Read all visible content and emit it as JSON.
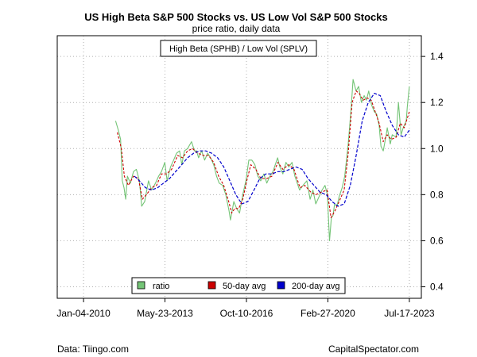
{
  "chart_data": {
    "type": "line",
    "title": "US High Beta S&P 500 Stocks vs. US Low Vol S&P 500 Stocks",
    "subtitle": "price ratio, daily data",
    "annotation": "High Beta (SPHB) / Low Vol (SPLV)",
    "footer_left": "Data: Tiingo.com",
    "footer_right": "CapitalSpectator.com",
    "x_ticks": [
      {
        "date": "2010-01-04",
        "label": "Jan-04-2010"
      },
      {
        "date": "2013-05-23",
        "label": "May-23-2013"
      },
      {
        "date": "2016-10-10",
        "label": "Oct-10-2016"
      },
      {
        "date": "2020-02-27",
        "label": "Feb-27-2020"
      },
      {
        "date": "2023-07-17",
        "label": "Jul-17-2023"
      }
    ],
    "xlim": [
      "2008-12-01",
      "2024-01-15"
    ],
    "y_ticks": [
      "0.4",
      "0.6",
      "0.8",
      "1.0",
      "1.2",
      "1.4"
    ],
    "ylim": [
      0.35,
      1.49
    ],
    "grid": true,
    "axis_side": "right",
    "legend_position": "bottom-center",
    "series": [
      {
        "name": "ratio",
        "color": "#74c476",
        "x": [
          "2011-05-05",
          "2011-06-15",
          "2011-07-20",
          "2011-08-15",
          "2011-09-10",
          "2011-10-05",
          "2011-11-01",
          "2011-12-15",
          "2012-02-01",
          "2012-03-15",
          "2012-05-01",
          "2012-06-04",
          "2012-07-20",
          "2012-09-15",
          "2012-11-01",
          "2012-12-31",
          "2013-02-15",
          "2013-03-31",
          "2013-05-21",
          "2013-06-24",
          "2013-08-15",
          "2013-10-01",
          "2013-11-15",
          "2013-12-31",
          "2014-02-03",
          "2014-03-15",
          "2014-05-01",
          "2014-06-30",
          "2014-08-15",
          "2014-09-15",
          "2014-10-15",
          "2014-12-01",
          "2015-01-15",
          "2015-03-01",
          "2015-04-15",
          "2015-06-01",
          "2015-07-15",
          "2015-08-24",
          "2015-10-15",
          "2015-12-01",
          "2016-01-20",
          "2016-02-11",
          "2016-04-01",
          "2016-05-15",
          "2016-06-27",
          "2016-08-15",
          "2016-10-01",
          "2016-11-15",
          "2016-12-31",
          "2017-02-15",
          "2017-04-01",
          "2017-05-15",
          "2017-07-01",
          "2017-08-15",
          "2017-10-01",
          "2017-11-15",
          "2018-01-26",
          "2018-03-01",
          "2018-04-15",
          "2018-06-01",
          "2018-07-15",
          "2018-09-01",
          "2018-10-15",
          "2018-12-24",
          "2019-02-15",
          "2019-04-15",
          "2019-06-03",
          "2019-07-15",
          "2019-08-27",
          "2019-10-15",
          "2019-12-01",
          "2020-01-15",
          "2020-02-20",
          "2020-03-23",
          "2020-04-20",
          "2020-05-15",
          "2020-06-08",
          "2020-07-15",
          "2020-08-15",
          "2020-10-01",
          "2020-11-09",
          "2020-12-31",
          "2021-02-15",
          "2021-03-15",
          "2021-04-30",
          "2021-06-07",
          "2021-07-20",
          "2021-08-31",
          "2021-10-04",
          "2021-11-08",
          "2021-12-20",
          "2022-01-31",
          "2022-03-08",
          "2022-04-15",
          "2022-05-12",
          "2022-06-16",
          "2022-07-31",
          "2022-08-16",
          "2022-09-30",
          "2022-10-31",
          "2022-12-28",
          "2023-02-02",
          "2023-03-13",
          "2023-04-15",
          "2023-05-31",
          "2023-06-15",
          "2023-07-17"
        ],
        "values": [
          1.12,
          1.08,
          1.04,
          0.86,
          0.83,
          0.78,
          0.88,
          0.85,
          0.9,
          0.91,
          0.86,
          0.75,
          0.77,
          0.86,
          0.82,
          0.85,
          0.88,
          0.9,
          0.94,
          0.86,
          0.92,
          0.95,
          0.98,
          0.99,
          0.93,
          0.99,
          1.0,
          1.03,
          0.99,
          0.99,
          0.96,
          0.99,
          0.95,
          0.98,
          0.96,
          0.93,
          0.88,
          0.85,
          0.84,
          0.8,
          0.73,
          0.69,
          0.77,
          0.74,
          0.72,
          0.8,
          0.86,
          0.95,
          0.95,
          0.93,
          0.88,
          0.86,
          0.89,
          0.85,
          0.88,
          0.9,
          0.96,
          0.92,
          0.89,
          0.94,
          0.92,
          0.94,
          0.88,
          0.82,
          0.84,
          0.86,
          0.78,
          0.82,
          0.76,
          0.79,
          0.82,
          0.84,
          0.8,
          0.6,
          0.7,
          0.71,
          0.76,
          0.75,
          0.79,
          0.83,
          0.88,
          1.02,
          1.18,
          1.3,
          1.25,
          1.27,
          1.2,
          1.23,
          1.21,
          1.25,
          1.19,
          1.16,
          1.15,
          1.1,
          1.01,
          0.99,
          1.06,
          1.09,
          1.02,
          1.06,
          1.05,
          1.2,
          1.06,
          1.09,
          1.12,
          1.18,
          1.27
        ]
      },
      {
        "name": "50-day avg",
        "color": "#cc0000",
        "x": [
          "2011-06-01",
          "2011-08-01",
          "2011-09-15",
          "2011-11-15",
          "2012-02-01",
          "2012-04-15",
          "2012-06-15",
          "2012-08-15",
          "2012-11-01",
          "2013-01-15",
          "2013-04-01",
          "2013-06-15",
          "2013-09-01",
          "2013-12-01",
          "2014-02-15",
          "2014-05-01",
          "2014-07-15",
          "2014-10-01",
          "2014-12-31",
          "2015-03-15",
          "2015-06-01",
          "2015-08-15",
          "2015-10-31",
          "2016-01-15",
          "2016-03-01",
          "2016-04-15",
          "2016-06-15",
          "2016-08-15",
          "2016-10-15",
          "2016-12-15",
          "2017-03-01",
          "2017-05-15",
          "2017-08-15",
          "2017-10-31",
          "2018-01-31",
          "2018-04-15",
          "2018-07-15",
          "2018-10-01",
          "2018-12-31",
          "2019-03-15",
          "2019-06-15",
          "2019-09-01",
          "2019-11-15",
          "2020-02-15",
          "2020-04-15",
          "2020-06-15",
          "2020-08-15",
          "2020-10-31",
          "2020-12-31",
          "2021-03-01",
          "2021-05-01",
          "2021-06-15",
          "2021-08-15",
          "2021-10-15",
          "2021-12-15",
          "2022-02-15",
          "2022-04-15",
          "2022-06-15",
          "2022-08-15",
          "2022-10-15",
          "2022-12-31",
          "2023-03-01",
          "2023-05-01",
          "2023-07-17"
        ],
        "values": [
          1.07,
          1.0,
          0.88,
          0.84,
          0.88,
          0.87,
          0.78,
          0.8,
          0.83,
          0.84,
          0.89,
          0.89,
          0.91,
          0.97,
          0.96,
          0.99,
          1.0,
          0.98,
          0.97,
          0.97,
          0.94,
          0.88,
          0.84,
          0.77,
          0.72,
          0.74,
          0.74,
          0.78,
          0.86,
          0.93,
          0.91,
          0.87,
          0.87,
          0.88,
          0.94,
          0.91,
          0.93,
          0.91,
          0.83,
          0.84,
          0.81,
          0.8,
          0.81,
          0.82,
          0.7,
          0.73,
          0.77,
          0.82,
          0.98,
          1.2,
          1.25,
          1.24,
          1.21,
          1.22,
          1.21,
          1.16,
          1.11,
          1.03,
          1.06,
          1.04,
          1.05,
          1.11,
          1.09,
          1.16
        ]
      },
      {
        "name": "200-day avg",
        "color": "#0000cc",
        "x": [
          "2012-02-15",
          "2012-05-01",
          "2012-08-01",
          "2012-11-01",
          "2013-02-01",
          "2013-05-01",
          "2013-08-01",
          "2013-11-01",
          "2014-02-01",
          "2014-05-01",
          "2014-08-01",
          "2014-11-01",
          "2015-02-01",
          "2015-05-01",
          "2015-08-01",
          "2015-11-01",
          "2016-02-01",
          "2016-05-01",
          "2016-08-01",
          "2016-11-01",
          "2017-02-01",
          "2017-05-01",
          "2017-08-01",
          "2017-11-01",
          "2018-02-01",
          "2018-05-01",
          "2018-08-01",
          "2018-11-01",
          "2019-02-01",
          "2019-05-01",
          "2019-08-01",
          "2019-11-01",
          "2020-02-01",
          "2020-05-01",
          "2020-08-01",
          "2020-11-01",
          "2021-02-01",
          "2021-05-01",
          "2021-08-01",
          "2021-11-01",
          "2022-02-01",
          "2022-05-01",
          "2022-08-01",
          "2022-11-01",
          "2023-02-01",
          "2023-05-01",
          "2023-07-17"
        ],
        "values": [
          0.88,
          0.86,
          0.83,
          0.82,
          0.83,
          0.85,
          0.87,
          0.9,
          0.93,
          0.96,
          0.98,
          0.99,
          0.99,
          0.98,
          0.96,
          0.92,
          0.86,
          0.8,
          0.76,
          0.77,
          0.82,
          0.87,
          0.89,
          0.89,
          0.9,
          0.9,
          0.91,
          0.92,
          0.91,
          0.87,
          0.84,
          0.81,
          0.8,
          0.77,
          0.75,
          0.76,
          0.84,
          0.97,
          1.12,
          1.2,
          1.24,
          1.23,
          1.16,
          1.1,
          1.06,
          1.05,
          1.08
        ]
      }
    ]
  }
}
